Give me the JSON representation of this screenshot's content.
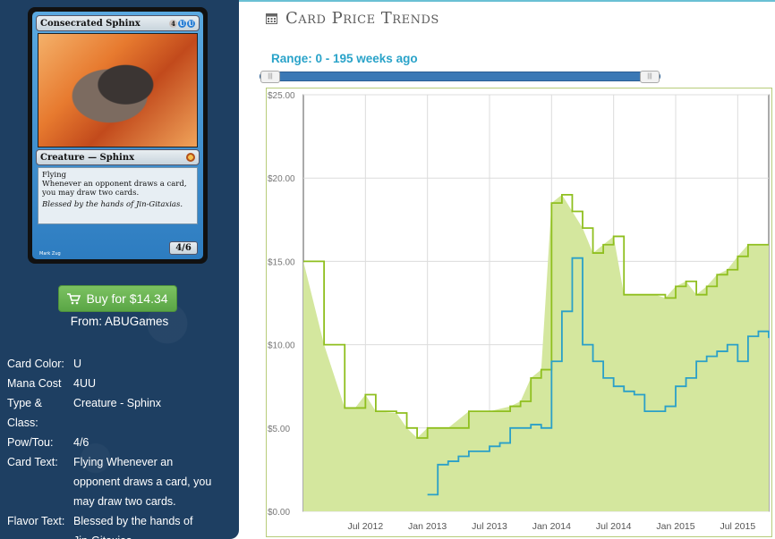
{
  "card": {
    "name": "Consecrated Sphinx",
    "mana_symbols": [
      "4",
      "U",
      "U"
    ],
    "type_line": "Creature — Sphinx",
    "rules_text": [
      "Flying",
      "Whenever an opponent draws a card, you may draw two cards."
    ],
    "flavor_text": "Blessed by the hands of Jin-Gitaxias.",
    "power_toughness": "4/6",
    "artist": "Mark Zug"
  },
  "buy": {
    "label": "Buy for $14.34",
    "icon": "cart-icon",
    "from": "From: ABUGames",
    "color": "#6ab553"
  },
  "details": [
    {
      "label": "Card Color:",
      "value": "U"
    },
    {
      "label": "Mana Cost",
      "value": "4UU"
    },
    {
      "label": "Type & Class:",
      "value": "Creature - Sphinx"
    },
    {
      "label": "Pow/Tou:",
      "value": "4/6"
    },
    {
      "label": "Card Text:",
      "value": "Flying Whenever an opponent draws a card, you may draw two cards."
    },
    {
      "label": "Flavor Text:",
      "value": "Blessed by the hands of Jin-Gitaxias."
    }
  ],
  "header": {
    "title": "Card Price Trends",
    "icon": "calendar-icon",
    "accent": "#6ac0d4"
  },
  "range": {
    "label": "Range: 0 - 195 weeks ago",
    "min_weeks": 0,
    "max_weeks": 195
  },
  "chart_data": {
    "type": "area",
    "x_tick_labels": [
      "Jul 2012",
      "Jan 2013",
      "Jul 2013",
      "Jan 2014",
      "Jul 2014",
      "Jan 2015",
      "Jul 2015"
    ],
    "y_tick_labels": [
      "$0.00",
      "$5.00",
      "$10.00",
      "$15.00",
      "$20.00",
      "$25.00"
    ],
    "ylim": [
      0,
      25
    ],
    "xlim": [
      "2012-01",
      "2015-10"
    ],
    "grid": true,
    "series": [
      {
        "color": "#8fbf1f",
        "fill": "#d4e79e",
        "points": [
          [
            "2012-01",
            15.0
          ],
          [
            "2012-03",
            10.0
          ],
          [
            "2012-05",
            6.2
          ],
          [
            "2012-06",
            6.2
          ],
          [
            "2012-07",
            7.0
          ],
          [
            "2012-08",
            6.0
          ],
          [
            "2012-10",
            5.9
          ],
          [
            "2012-11",
            5.0
          ],
          [
            "2012-12",
            4.4
          ],
          [
            "2013-01",
            5.0
          ],
          [
            "2013-03",
            5.0
          ],
          [
            "2013-05",
            6.0
          ],
          [
            "2013-07",
            6.0
          ],
          [
            "2013-09",
            6.3
          ],
          [
            "2013-10",
            6.6
          ],
          [
            "2013-11",
            8.0
          ],
          [
            "2013-12",
            8.5
          ],
          [
            "2014-01",
            18.5
          ],
          [
            "2014-02",
            19.0
          ],
          [
            "2014-03",
            18.0
          ],
          [
            "2014-04",
            17.0
          ],
          [
            "2014-05",
            15.5
          ],
          [
            "2014-06",
            16.0
          ],
          [
            "2014-07",
            16.5
          ],
          [
            "2014-08",
            13.0
          ],
          [
            "2014-09",
            13.0
          ],
          [
            "2014-10",
            13.0
          ],
          [
            "2014-11",
            13.0
          ],
          [
            "2014-12",
            12.8
          ],
          [
            "2015-01",
            13.5
          ],
          [
            "2015-02",
            13.8
          ],
          [
            "2015-03",
            13.0
          ],
          [
            "2015-04",
            13.5
          ],
          [
            "2015-05",
            14.2
          ],
          [
            "2015-06",
            14.5
          ],
          [
            "2015-07",
            15.3
          ],
          [
            "2015-08",
            16.0
          ],
          [
            "2015-09",
            16.0
          ],
          [
            "2015-10",
            16.0
          ]
        ]
      },
      {
        "color": "#2aa0c8",
        "points": [
          [
            "2013-01",
            1.0
          ],
          [
            "2013-02",
            2.8
          ],
          [
            "2013-03",
            3.0
          ],
          [
            "2013-04",
            3.3
          ],
          [
            "2013-05",
            3.6
          ],
          [
            "2013-06",
            3.6
          ],
          [
            "2013-07",
            3.9
          ],
          [
            "2013-08",
            4.1
          ],
          [
            "2013-09",
            5.0
          ],
          [
            "2013-10",
            5.0
          ],
          [
            "2013-11",
            5.2
          ],
          [
            "2013-12",
            5.0
          ],
          [
            "2014-01",
            9.0
          ],
          [
            "2014-02",
            12.0
          ],
          [
            "2014-03",
            15.2
          ],
          [
            "2014-04",
            10.0
          ],
          [
            "2014-05",
            9.0
          ],
          [
            "2014-06",
            8.0
          ],
          [
            "2014-07",
            7.5
          ],
          [
            "2014-08",
            7.2
          ],
          [
            "2014-09",
            7.0
          ],
          [
            "2014-10",
            6.0
          ],
          [
            "2014-11",
            6.0
          ],
          [
            "2014-12",
            6.3
          ],
          [
            "2015-01",
            7.5
          ],
          [
            "2015-02",
            8.0
          ],
          [
            "2015-03",
            9.0
          ],
          [
            "2015-04",
            9.3
          ],
          [
            "2015-05",
            9.6
          ],
          [
            "2015-06",
            10.0
          ],
          [
            "2015-07",
            9.0
          ],
          [
            "2015-08",
            10.5
          ],
          [
            "2015-09",
            10.8
          ],
          [
            "2015-10",
            10.4
          ]
        ]
      }
    ]
  }
}
